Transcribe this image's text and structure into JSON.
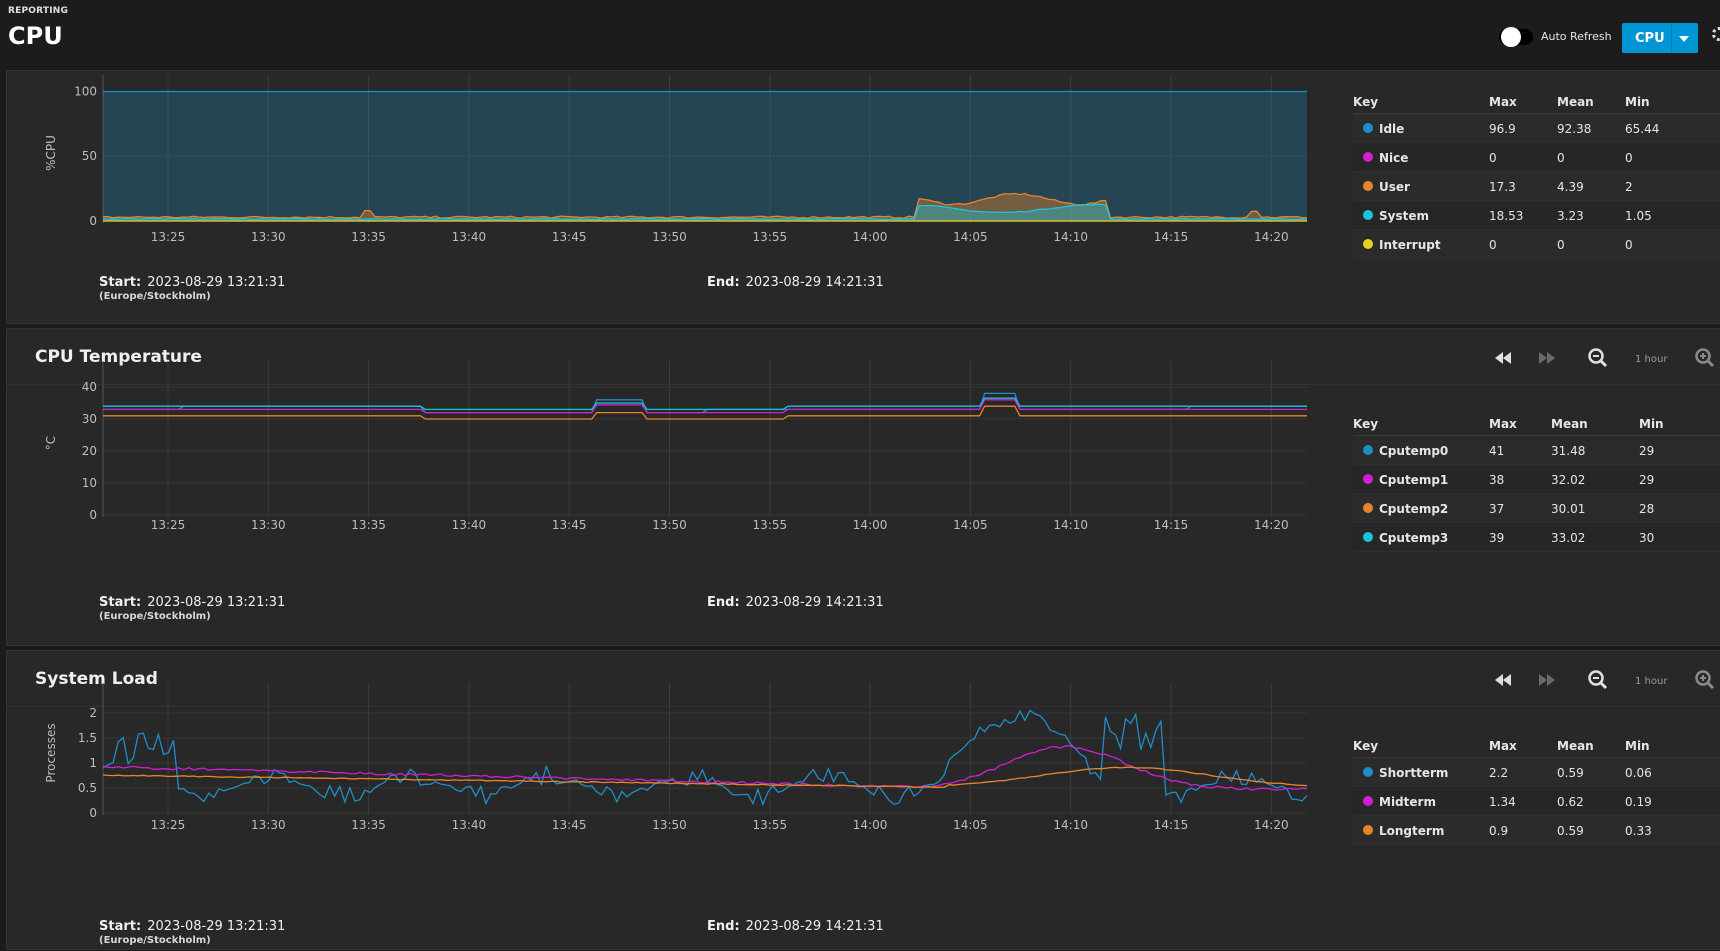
{
  "header": {
    "breadcrumb": "REPORTING",
    "title": "CPU",
    "auto_refresh_label": "Auto Refresh",
    "report_select_label": "CPU"
  },
  "x_ticks": [
    "13:25",
    "13:30",
    "13:35",
    "13:40",
    "13:45",
    "13:50",
    "13:55",
    "14:00",
    "14:05",
    "14:10",
    "14:15",
    "14:20"
  ],
  "time_range": {
    "start_label": "Start:",
    "start": "2023-08-29 13:21:31",
    "timezone": "(Europe/Stockholm)",
    "end_label": "End:",
    "end": "2023-08-29 14:21:31",
    "zoom_label": "1 hour"
  },
  "legend_headers": {
    "key": "Key",
    "max": "Max",
    "mean": "Mean",
    "min": "Min"
  },
  "panels": [
    {
      "id": "cpu",
      "title": "",
      "chart_data": {
        "type": "area",
        "ylabel": "%CPU",
        "ylim": [
          0,
          105
        ],
        "yticks": [
          "0",
          "50",
          "100"
        ],
        "x_range": [
          "13:21:31",
          "14:21:31"
        ],
        "series": [
          {
            "name": "Idle",
            "color": "#1f8ec8",
            "max": "96.9",
            "mean": "92.38",
            "min": "65.44"
          },
          {
            "name": "Nice",
            "color": "#d020d0",
            "max": "0",
            "mean": "0",
            "min": "0"
          },
          {
            "name": "User",
            "color": "#e8852a",
            "max": "17.3",
            "mean": "4.39",
            "min": "2"
          },
          {
            "name": "System",
            "color": "#17c6d8",
            "max": "18.53",
            "mean": "3.23",
            "min": "1.05"
          },
          {
            "name": "Interrupt",
            "color": "#e5d31f",
            "max": "0",
            "mean": "0",
            "min": "0"
          }
        ]
      }
    },
    {
      "id": "temp",
      "title": "CPU Temperature",
      "chart_data": {
        "type": "line",
        "ylabel": "°C",
        "ylim": [
          0,
          45
        ],
        "yticks": [
          "0",
          "10",
          "20",
          "30",
          "40"
        ],
        "x_range": [
          "13:21:31",
          "14:21:31"
        ],
        "series": [
          {
            "name": "Cputemp0",
            "color": "#1f8ec8",
            "max": "41",
            "mean": "31.48",
            "min": "29"
          },
          {
            "name": "Cputemp1",
            "color": "#d020d0",
            "max": "38",
            "mean": "32.02",
            "min": "29"
          },
          {
            "name": "Cputemp2",
            "color": "#e8852a",
            "max": "37",
            "mean": "30.01",
            "min": "28"
          },
          {
            "name": "Cputemp3",
            "color": "#17c6d8",
            "max": "39",
            "mean": "33.02",
            "min": "30"
          }
        ]
      }
    },
    {
      "id": "load",
      "title": "System Load",
      "chart_data": {
        "type": "line",
        "ylabel": "Processes",
        "ylim": [
          0,
          2.4
        ],
        "yticks": [
          "0",
          "0.5",
          "1",
          "1.5",
          "2"
        ],
        "x_range": [
          "13:21:31",
          "14:21:31"
        ],
        "series": [
          {
            "name": "Shortterm",
            "color": "#1f8ec8",
            "max": "2.2",
            "mean": "0.59",
            "min": "0.06"
          },
          {
            "name": "Midterm",
            "color": "#d020d0",
            "max": "1.34",
            "mean": "0.62",
            "min": "0.19"
          },
          {
            "name": "Longterm",
            "color": "#e8852a",
            "max": "0.9",
            "mean": "0.59",
            "min": "0.33"
          }
        ]
      }
    }
  ]
}
